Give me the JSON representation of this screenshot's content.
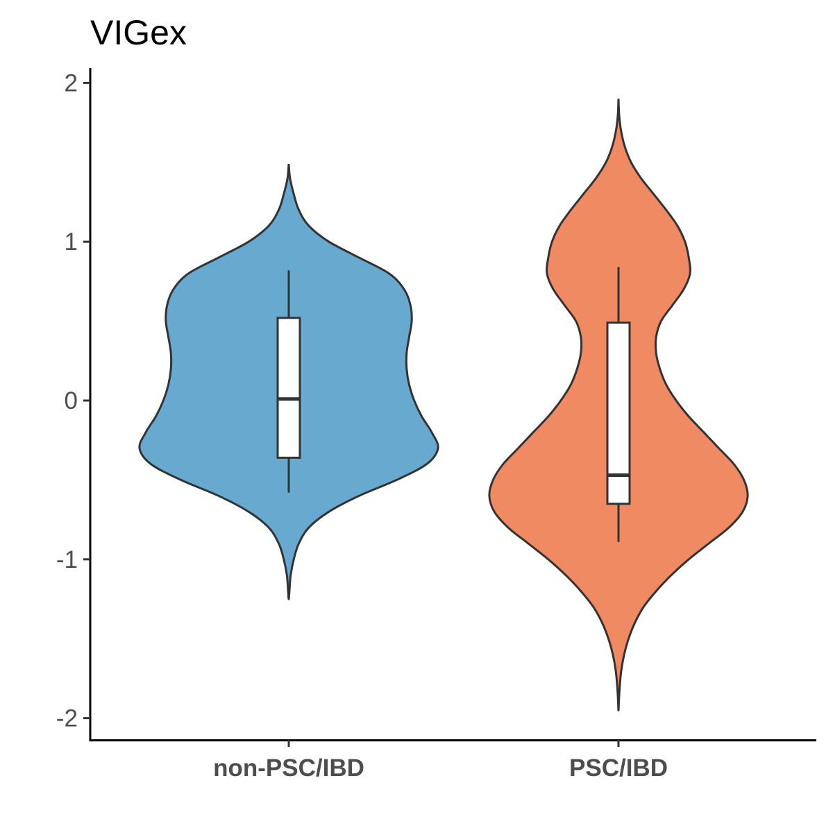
{
  "chart_data": {
    "type": "violin",
    "title": "VIGex",
    "xlabel": "",
    "ylabel": "",
    "categories": [
      "non-PSC/IBD",
      "PSC/IBD"
    ],
    "ylim": [
      -2.12,
      2.08
    ],
    "yticks": [
      2,
      1,
      0,
      -1,
      -2
    ],
    "ytick_labels": [
      "2",
      "1",
      "0",
      "-1",
      "-2"
    ],
    "grid": false,
    "legend": "none",
    "series": [
      {
        "category": "non-PSC/IBD",
        "color": "#67a9cf",
        "box": {
          "whisker_low": -0.58,
          "q1": -0.36,
          "median": 0.01,
          "q3": 0.52,
          "whisker_high": 0.82
        },
        "density_profile": [
          [
            1.49,
            0.0
          ],
          [
            1.4,
            0.01
          ],
          [
            1.3,
            0.04
          ],
          [
            1.2,
            0.08
          ],
          [
            1.1,
            0.16
          ],
          [
            1.0,
            0.32
          ],
          [
            0.9,
            0.56
          ],
          [
            0.8,
            0.8
          ],
          [
            0.7,
            0.92
          ],
          [
            0.6,
            0.97
          ],
          [
            0.5,
            0.98
          ],
          [
            0.4,
            0.96
          ],
          [
            0.3,
            0.94
          ],
          [
            0.2,
            0.94
          ],
          [
            0.1,
            0.96
          ],
          [
            0.0,
            1.0
          ],
          [
            -0.1,
            1.06
          ],
          [
            -0.2,
            1.14
          ],
          [
            -0.3,
            1.19
          ],
          [
            -0.4,
            1.1
          ],
          [
            -0.5,
            0.86
          ],
          [
            -0.6,
            0.56
          ],
          [
            -0.7,
            0.32
          ],
          [
            -0.8,
            0.16
          ],
          [
            -0.9,
            0.08
          ],
          [
            -1.0,
            0.04
          ],
          [
            -1.1,
            0.015
          ],
          [
            -1.2,
            0.005
          ],
          [
            -1.25,
            0.0
          ]
        ]
      },
      {
        "category": "PSC/IBD",
        "color": "#ef8a62",
        "box": {
          "whisker_low": -0.89,
          "q1": -0.65,
          "median": -0.47,
          "q3": 0.49,
          "whisker_high": 0.84
        },
        "density_profile": [
          [
            1.9,
            0.0
          ],
          [
            1.8,
            0.005
          ],
          [
            1.7,
            0.02
          ],
          [
            1.6,
            0.05
          ],
          [
            1.5,
            0.1
          ],
          [
            1.4,
            0.18
          ],
          [
            1.3,
            0.28
          ],
          [
            1.2,
            0.38
          ],
          [
            1.1,
            0.47
          ],
          [
            1.0,
            0.53
          ],
          [
            0.9,
            0.56
          ],
          [
            0.8,
            0.57
          ],
          [
            0.7,
            0.52
          ],
          [
            0.6,
            0.43
          ],
          [
            0.5,
            0.34
          ],
          [
            0.4,
            0.3
          ],
          [
            0.3,
            0.3
          ],
          [
            0.2,
            0.33
          ],
          [
            0.1,
            0.38
          ],
          [
            0.0,
            0.46
          ],
          [
            -0.1,
            0.56
          ],
          [
            -0.2,
            0.68
          ],
          [
            -0.3,
            0.8
          ],
          [
            -0.4,
            0.92
          ],
          [
            -0.5,
            1.0
          ],
          [
            -0.6,
            1.03
          ],
          [
            -0.7,
            0.99
          ],
          [
            -0.8,
            0.88
          ],
          [
            -0.9,
            0.72
          ],
          [
            -1.0,
            0.56
          ],
          [
            -1.1,
            0.42
          ],
          [
            -1.2,
            0.3
          ],
          [
            -1.3,
            0.2
          ],
          [
            -1.4,
            0.13
          ],
          [
            -1.5,
            0.08
          ],
          [
            -1.6,
            0.045
          ],
          [
            -1.7,
            0.022
          ],
          [
            -1.8,
            0.01
          ],
          [
            -1.9,
            0.003
          ],
          [
            -1.95,
            0.0
          ]
        ]
      }
    ]
  }
}
